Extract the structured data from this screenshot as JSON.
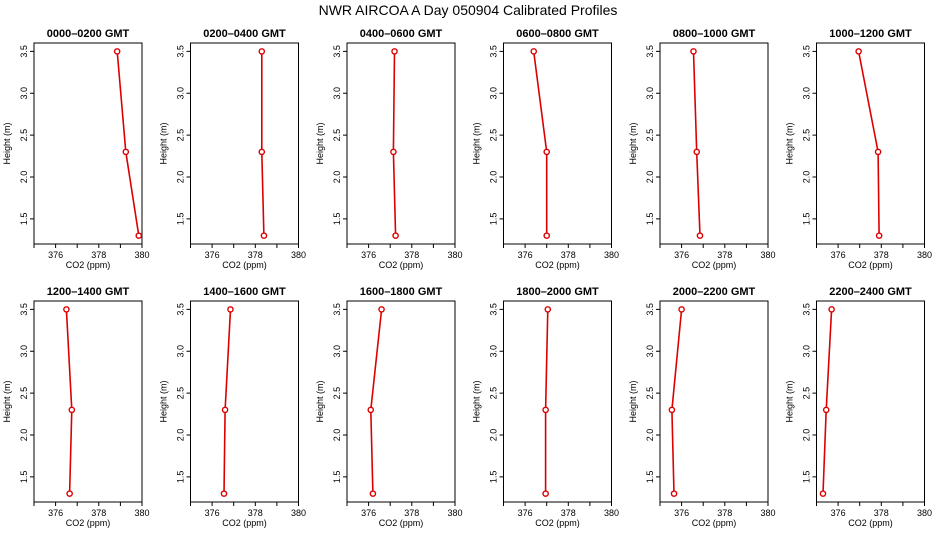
{
  "title": "NWR AIRCOA A  Day 050904  Calibrated Profiles",
  "colors": {
    "series": "#dd0000",
    "axis": "#000000"
  },
  "chart_data": [
    {
      "type": "line",
      "title": "0000–0200 GMT",
      "xlabel": "CO2 (ppm)",
      "ylabel": "Height (m)",
      "xlim": [
        375,
        380
      ],
      "ylim": [
        1.2,
        3.6
      ],
      "xticks": [
        "376",
        "378",
        "380"
      ],
      "yticks": [
        "1.5",
        "2.0",
        "2.5",
        "3.0",
        "3.5"
      ],
      "series": [
        {
          "x": [
            378.85,
            379.25,
            379.85
          ],
          "y": [
            3.5,
            2.3,
            1.3
          ]
        }
      ]
    },
    {
      "type": "line",
      "title": "0200–0400 GMT",
      "xlabel": "CO2 (ppm)",
      "ylabel": "Height (m)",
      "xlim": [
        375,
        380
      ],
      "ylim": [
        1.2,
        3.6
      ],
      "xticks": [
        "376",
        "378",
        "380"
      ],
      "yticks": [
        "1.5",
        "2.0",
        "2.5",
        "3.0",
        "3.5"
      ],
      "series": [
        {
          "x": [
            378.3,
            378.3,
            378.4
          ],
          "y": [
            3.5,
            2.3,
            1.3
          ]
        }
      ]
    },
    {
      "type": "line",
      "title": "0400–0600 GMT",
      "xlabel": "CO2 (ppm)",
      "ylabel": "Height (m)",
      "xlim": [
        375,
        380
      ],
      "ylim": [
        1.2,
        3.6
      ],
      "xticks": [
        "376",
        "378",
        "380"
      ],
      "yticks": [
        "1.5",
        "2.0",
        "2.5",
        "3.0",
        "3.5"
      ],
      "series": [
        {
          "x": [
            377.2,
            377.15,
            377.25
          ],
          "y": [
            3.5,
            2.3,
            1.3
          ]
        }
      ]
    },
    {
      "type": "line",
      "title": "0600–0800 GMT",
      "xlabel": "CO2 (ppm)",
      "ylabel": "Height (m)",
      "xlim": [
        375,
        380
      ],
      "ylim": [
        1.2,
        3.6
      ],
      "xticks": [
        "376",
        "378",
        "380"
      ],
      "yticks": [
        "1.5",
        "2.0",
        "2.5",
        "3.0",
        "3.5"
      ],
      "series": [
        {
          "x": [
            376.4,
            377.0,
            377.0
          ],
          "y": [
            3.5,
            2.3,
            1.3
          ]
        }
      ]
    },
    {
      "type": "line",
      "title": "0800–1000 GMT",
      "xlabel": "CO2 (ppm)",
      "ylabel": "Height (m)",
      "xlim": [
        375,
        380
      ],
      "ylim": [
        1.2,
        3.6
      ],
      "xticks": [
        "376",
        "378",
        "380"
      ],
      "yticks": [
        "1.5",
        "2.0",
        "2.5",
        "3.0",
        "3.5"
      ],
      "series": [
        {
          "x": [
            376.55,
            376.7,
            376.85
          ],
          "y": [
            3.5,
            2.3,
            1.3
          ]
        }
      ]
    },
    {
      "type": "line",
      "title": "1000–1200 GMT",
      "xlabel": "CO2 (ppm)",
      "ylabel": "Height (m)",
      "xlim": [
        375,
        380
      ],
      "ylim": [
        1.2,
        3.6
      ],
      "xticks": [
        "376",
        "378",
        "380"
      ],
      "yticks": [
        "1.5",
        "2.0",
        "2.5",
        "3.0",
        "3.5"
      ],
      "series": [
        {
          "x": [
            376.95,
            377.85,
            377.9
          ],
          "y": [
            3.5,
            2.3,
            1.3
          ]
        }
      ]
    },
    {
      "type": "line",
      "title": "1200–1400 GMT",
      "xlabel": "CO2 (ppm)",
      "ylabel": "Height (m)",
      "xlim": [
        375,
        380
      ],
      "ylim": [
        1.2,
        3.6
      ],
      "xticks": [
        "376",
        "378",
        "380"
      ],
      "yticks": [
        "1.5",
        "2.0",
        "2.5",
        "3.0",
        "3.5"
      ],
      "series": [
        {
          "x": [
            376.5,
            376.75,
            376.65
          ],
          "y": [
            3.5,
            2.3,
            1.3
          ]
        }
      ]
    },
    {
      "type": "line",
      "title": "1400–1600 GMT",
      "xlabel": "CO2 (ppm)",
      "ylabel": "Height (m)",
      "xlim": [
        375,
        380
      ],
      "ylim": [
        1.2,
        3.6
      ],
      "xticks": [
        "376",
        "378",
        "380"
      ],
      "yticks": [
        "1.5",
        "2.0",
        "2.5",
        "3.0",
        "3.5"
      ],
      "series": [
        {
          "x": [
            376.85,
            376.6,
            376.55
          ],
          "y": [
            3.5,
            2.3,
            1.3
          ]
        }
      ]
    },
    {
      "type": "line",
      "title": "1600–1800 GMT",
      "xlabel": "CO2 (ppm)",
      "ylabel": "Height (m)",
      "xlim": [
        375,
        380
      ],
      "ylim": [
        1.2,
        3.6
      ],
      "xticks": [
        "376",
        "378",
        "380"
      ],
      "yticks": [
        "1.5",
        "2.0",
        "2.5",
        "3.0",
        "3.5"
      ],
      "series": [
        {
          "x": [
            376.6,
            376.1,
            376.2
          ],
          "y": [
            3.5,
            2.3,
            1.3
          ]
        }
      ]
    },
    {
      "type": "line",
      "title": "1800–2000 GMT",
      "xlabel": "CO2 (ppm)",
      "ylabel": "Height (m)",
      "xlim": [
        375,
        380
      ],
      "ylim": [
        1.2,
        3.6
      ],
      "xticks": [
        "376",
        "378",
        "380"
      ],
      "yticks": [
        "1.5",
        "2.0",
        "2.5",
        "3.0",
        "3.5"
      ],
      "series": [
        {
          "x": [
            377.05,
            376.95,
            376.95
          ],
          "y": [
            3.5,
            2.3,
            1.3
          ]
        }
      ]
    },
    {
      "type": "line",
      "title": "2000–2200 GMT",
      "xlabel": "CO2 (ppm)",
      "ylabel": "Height (m)",
      "xlim": [
        375,
        380
      ],
      "ylim": [
        1.2,
        3.6
      ],
      "xticks": [
        "376",
        "378",
        "380"
      ],
      "yticks": [
        "1.5",
        "2.0",
        "2.5",
        "3.0",
        "3.5"
      ],
      "series": [
        {
          "x": [
            376.0,
            375.55,
            375.65
          ],
          "y": [
            3.5,
            2.3,
            1.3
          ]
        }
      ]
    },
    {
      "type": "line",
      "title": "2200–2400 GMT",
      "xlabel": "CO2 (ppm)",
      "ylabel": "Height (m)",
      "xlim": [
        375,
        380
      ],
      "ylim": [
        1.2,
        3.6
      ],
      "xticks": [
        "376",
        "378",
        "380"
      ],
      "yticks": [
        "1.5",
        "2.0",
        "2.5",
        "3.0",
        "3.5"
      ],
      "series": [
        {
          "x": [
            375.7,
            375.45,
            375.3
          ],
          "y": [
            3.5,
            2.3,
            1.3
          ]
        }
      ]
    }
  ]
}
